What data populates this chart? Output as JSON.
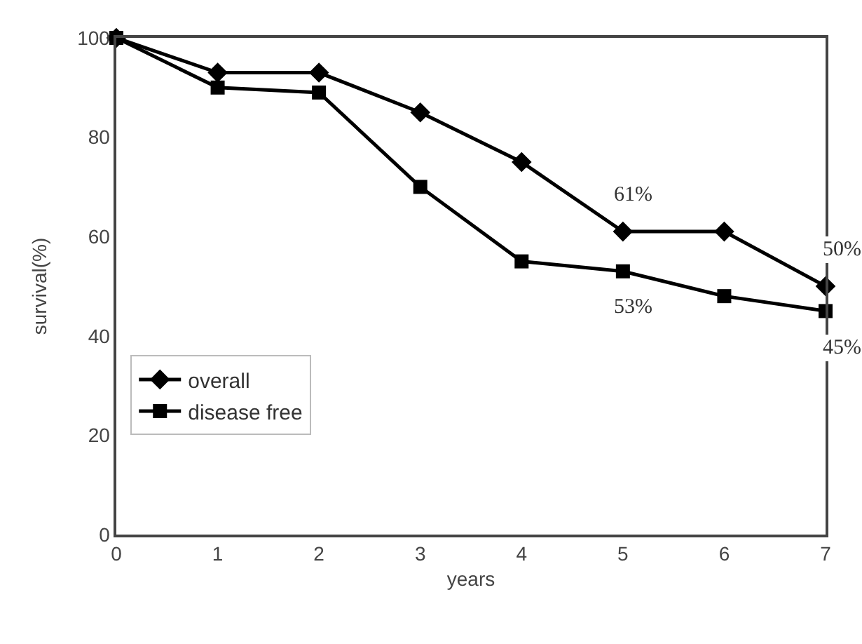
{
  "chart_data": {
    "type": "line",
    "xlabel": "years",
    "ylabel": "survival(%)",
    "x": [
      0,
      1,
      2,
      3,
      4,
      5,
      6,
      7
    ],
    "series": [
      {
        "name": "overall",
        "color": "#000000",
        "marker": "diamond",
        "values": [
          100,
          93,
          93,
          85,
          75,
          61,
          61,
          50
        ],
        "value_labels": [
          null,
          null,
          null,
          null,
          null,
          "61%",
          null,
          "50%"
        ]
      },
      {
        "name": "disease free",
        "color": "#000000",
        "marker": "square",
        "values": [
          100,
          90,
          89,
          70,
          55,
          53,
          48,
          45
        ],
        "value_labels": [
          null,
          null,
          null,
          null,
          null,
          "53%",
          null,
          "45%"
        ]
      }
    ],
    "xlim": [
      0,
      7
    ],
    "xticks": [
      0,
      1,
      2,
      3,
      4,
      5,
      6,
      7
    ],
    "ylim": [
      0,
      100
    ],
    "yticks": [
      0,
      20,
      40,
      60,
      80,
      100
    ],
    "legend": "bottom left",
    "line_style": "solid"
  }
}
